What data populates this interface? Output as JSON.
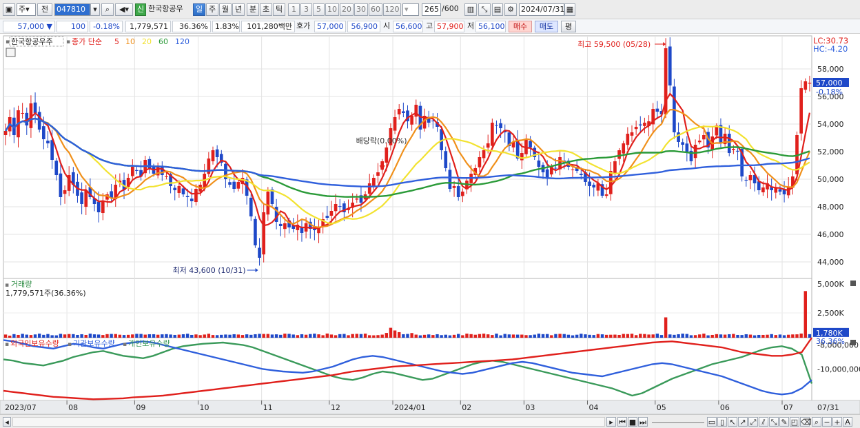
{
  "toolbar": {
    "period_type": "주",
    "prev_label": "전",
    "code": "047810",
    "sin_badge": "신",
    "stock_name": "한국항공우",
    "period_buttons": [
      "일",
      "주",
      "월",
      "년",
      "분",
      "초",
      "틱"
    ],
    "active_period": "일",
    "minute_buttons": [
      "1",
      "3",
      "5",
      "10",
      "20",
      "30",
      "60",
      "120"
    ],
    "count_value": "265",
    "count_total": "/600",
    "date": "2024/07/31"
  },
  "quote": {
    "price": "57,000",
    "change": "100",
    "change_pct": "-0.18%",
    "volume": "1,779,571",
    "vol_ratio": "36.36%",
    "turnover_pct": "1.83%",
    "amount": "101,280백만",
    "ask_label": "호가",
    "ask": "57,000",
    "bid": "56,900",
    "open_label": "시",
    "open": "56,600",
    "high_label": "고",
    "high": "57,900",
    "low_label": "저",
    "low": "56,100",
    "buy_label": "매수",
    "sell_label": "매도",
    "eval_label": "평"
  },
  "colors": {
    "up": "#e0201c",
    "down": "#1e48c8",
    "ma5": "#e0201c",
    "ma10": "#f0901a",
    "ma20": "#f2e230",
    "ma60": "#2a9a38",
    "ma120": "#2f5fdc",
    "foreign": "#e0201c",
    "institution": "#2f5fdc",
    "individual": "#3a9a5a"
  },
  "chart_data": [
    {
      "type": "candlestick",
      "title": "한국항공우주",
      "legend_label": "종가 단순",
      "ma_periods": [
        "5",
        "10",
        "20",
        "60",
        "120"
      ],
      "ylim": [
        42800,
        60400
      ],
      "yticks": [
        "44,000",
        "46,000",
        "48,000",
        "50,000",
        "52,000",
        "54,000",
        "56,000",
        "58,000"
      ],
      "x_labels": [
        "2023/07",
        "08",
        "09",
        "10",
        "11",
        "12",
        "2024/01",
        "02",
        "03",
        "04",
        "05",
        "06",
        "07"
      ],
      "last_date_label": "07/31",
      "last_price_tag": "57,000",
      "last_change_tag": "-0.18%",
      "lc": "LC:30.73",
      "hc": "HC:-4.20",
      "annotations": {
        "high": "최고 59,500 (05/28)",
        "low": "최저 43,600 (10/31)",
        "dividend": "배당락(0.00%)"
      },
      "series": [
        {
          "name": "종가",
          "values": [
            53500,
            54500,
            53200,
            55000,
            54800,
            53900,
            55500,
            54800,
            53600,
            52900,
            52600,
            51400,
            50300,
            48700,
            49200,
            50300,
            49600,
            48800,
            48200,
            49200,
            48700,
            48200,
            47600,
            48400,
            48900,
            48600,
            49600,
            49900,
            49200,
            50100,
            50900,
            50600,
            50200,
            51400,
            50800,
            50400,
            50900,
            50300,
            50200,
            49500,
            49200,
            49500,
            48900,
            48700,
            48400,
            49300,
            49600,
            50400,
            51500,
            52100,
            51600,
            51200,
            50000,
            49600,
            49300,
            49800,
            50100,
            48800,
            47300,
            45200,
            44300,
            47600,
            49100,
            48200,
            46900,
            46600,
            46800,
            46500,
            46400,
            46700,
            46100,
            46800,
            46400,
            46300,
            46500,
            47100,
            47200,
            47700,
            48200,
            48000,
            47600,
            47900,
            48300,
            48600,
            48300,
            48900,
            49700,
            50100,
            50500,
            51300,
            52300,
            53700,
            54500,
            55100,
            54800,
            54200,
            54600,
            55400,
            53600,
            54600,
            54100,
            54200,
            53800,
            52100,
            50800,
            49300,
            49500,
            48700,
            49100,
            49900,
            50400,
            50800,
            51600,
            52100,
            52600,
            54100,
            53900,
            53700,
            53400,
            52400,
            52700,
            51500,
            51900,
            52900,
            52300,
            51600,
            50900,
            50500,
            50100,
            50900,
            50800,
            51600,
            51200,
            50900,
            50700,
            50600,
            50300,
            49800,
            49500,
            49400,
            49700,
            48800,
            48900,
            50600,
            51300,
            52100,
            52600,
            53300,
            53400,
            53800,
            53900,
            54100,
            54200,
            55100,
            54900,
            54700,
            59500,
            56800,
            53400,
            52700,
            52500,
            52000,
            51300,
            52500,
            52800,
            53200,
            52300,
            53100,
            53900,
            52600,
            53300,
            51900,
            52200,
            52000,
            50200,
            49900,
            50300,
            49700,
            49200,
            49400,
            49700,
            49200,
            49400,
            49100,
            48900,
            49400,
            50200,
            53200,
            56600,
            57100,
            57000
          ]
        },
        {
          "name": "거래량",
          "values": [
            32,
            21,
            36,
            28,
            39,
            31,
            27,
            33,
            41,
            29,
            37,
            25,
            24,
            39,
            33,
            37,
            36,
            28,
            35,
            28,
            41,
            34,
            32,
            27,
            36,
            38,
            37,
            30,
            27,
            29,
            33,
            39,
            38,
            31,
            35,
            35,
            30,
            34,
            36,
            32,
            28,
            31,
            35,
            40,
            28,
            33,
            26,
            32,
            40,
            27,
            26,
            29,
            32,
            30,
            35,
            32,
            27,
            34,
            29,
            35,
            39,
            38,
            38,
            32,
            34,
            29,
            41,
            39,
            32,
            26,
            35,
            30,
            37,
            41,
            34,
            25,
            42,
            32,
            25,
            36,
            38,
            25,
            37,
            39,
            37,
            41,
            25,
            24,
            26,
            31,
            48,
            100,
            73,
            56,
            35,
            38,
            47,
            31,
            24,
            29,
            33,
            27,
            35,
            26,
            30,
            24,
            29,
            38,
            25,
            41,
            36,
            30,
            37,
            41,
            34,
            27,
            41,
            24,
            38,
            33,
            32,
            31,
            31,
            26,
            26,
            31,
            41,
            36,
            37,
            25,
            37,
            39,
            37,
            30,
            24,
            30,
            40,
            34,
            29,
            27,
            37,
            34,
            29,
            30,
            31,
            28,
            38,
            37,
            40,
            26,
            39,
            37,
            32,
            33,
            41,
            27,
            205,
            33,
            29,
            35,
            41,
            38,
            25,
            26,
            33,
            41,
            24,
            28,
            36,
            33,
            31,
            35,
            38,
            28,
            27,
            35,
            31,
            24,
            28,
            28,
            30,
            36,
            27,
            32,
            25,
            30,
            33,
            34,
            42,
            470,
            35.6
          ]
        },
        {
          "name": "외국인보유수량",
          "values": [
            -11.8,
            -11.9,
            -12.0,
            -12.1,
            -12.2,
            -12.3,
            -12.35,
            -12.4,
            -12.45,
            -12.5,
            -12.48,
            -12.45,
            -12.42,
            -12.35,
            -12.3,
            -12.25,
            -12.2,
            -12.1,
            -12.0,
            -11.9,
            -11.8,
            -11.7,
            -11.6,
            -11.5,
            -11.4,
            -11.3,
            -11.2,
            -11.1,
            -11.0,
            -10.9,
            -10.8,
            -10.7,
            -10.6,
            -10.5,
            -10.35,
            -10.2,
            -10.1,
            -10.0,
            -9.9,
            -9.8,
            -9.75,
            -9.7,
            -9.65,
            -9.6,
            -9.55,
            -9.5,
            -9.45,
            -9.4,
            -9.35,
            -9.3,
            -9.25,
            -9.2,
            -9.1,
            -9.0,
            -8.9,
            -8.8,
            -8.7,
            -8.6,
            -8.5,
            -8.4,
            -8.3,
            -8.2,
            -8.1,
            -8.0,
            -7.9,
            -7.8,
            -7.75,
            -7.7,
            -7.8,
            -7.9,
            -8.0,
            -8.1,
            -8.2,
            -8.4,
            -8.6,
            -8.7,
            -8.8,
            -8.9,
            -8.9,
            -8.8,
            -8.6,
            -7.4
          ]
        },
        {
          "name": "기관보유수량",
          "values": [
            -7.6,
            -7.7,
            -7.9,
            -8.1,
            -8.2,
            -8.3,
            -8.1,
            -7.9,
            -8.0,
            -8.2,
            -8.3,
            -8.1,
            -7.9,
            -7.8,
            -7.7,
            -7.8,
            -8.0,
            -8.2,
            -8.4,
            -8.6,
            -8.8,
            -9.0,
            -9.2,
            -9.4,
            -9.6,
            -9.8,
            -10.0,
            -10.1,
            -10.2,
            -10.25,
            -10.3,
            -10.2,
            -10.0,
            -9.8,
            -9.5,
            -9.2,
            -9.0,
            -8.9,
            -9.0,
            -9.2,
            -9.4,
            -9.6,
            -9.8,
            -10.0,
            -10.2,
            -10.3,
            -10.4,
            -10.3,
            -10.1,
            -9.9,
            -9.7,
            -9.5,
            -9.4,
            -9.5,
            -9.7,
            -9.9,
            -10.1,
            -10.3,
            -10.4,
            -10.5,
            -10.6,
            -10.4,
            -10.2,
            -10.0,
            -9.8,
            -9.6,
            -9.5,
            -9.6,
            -9.8,
            -10.0,
            -10.2,
            -10.4,
            -10.6,
            -10.9,
            -11.2,
            -11.5,
            -11.8,
            -12.0,
            -12.1,
            -12.0,
            -11.6,
            -10.9
          ]
        },
        {
          "name": "개인보유수량",
          "values": [
            -9.2,
            -9.3,
            -9.5,
            -9.6,
            -9.7,
            -9.5,
            -9.3,
            -9.0,
            -8.8,
            -8.6,
            -8.5,
            -8.7,
            -8.9,
            -9.0,
            -9.1,
            -8.9,
            -8.6,
            -8.3,
            -8.1,
            -8.0,
            -7.9,
            -7.85,
            -7.8,
            -7.9,
            -8.0,
            -8.2,
            -8.5,
            -8.8,
            -9.1,
            -9.4,
            -9.7,
            -10.0,
            -10.3,
            -10.6,
            -10.8,
            -10.9,
            -10.7,
            -10.4,
            -10.2,
            -10.3,
            -10.5,
            -10.7,
            -10.9,
            -10.8,
            -10.5,
            -10.2,
            -9.9,
            -9.6,
            -9.4,
            -9.3,
            -9.4,
            -9.6,
            -9.8,
            -10.0,
            -10.2,
            -10.4,
            -10.6,
            -10.8,
            -11.0,
            -11.2,
            -11.4,
            -11.6,
            -11.9,
            -12.2,
            -12.0,
            -11.6,
            -11.2,
            -10.8,
            -10.5,
            -10.2,
            -9.9,
            -9.6,
            -9.4,
            -9.2,
            -9.0,
            -8.7,
            -8.4,
            -8.2,
            -8.1,
            -8.3,
            -8.8,
            -11.2
          ]
        }
      ]
    },
    {
      "type": "bar",
      "title": "거래량",
      "volume_text": "1,779,571주(36.36%)",
      "yticks": [
        "5,000K",
        "2,500K"
      ],
      "last_tag": "1,780K",
      "last_pct_tag": "36.36%"
    },
    {
      "type": "line",
      "legend": [
        "외국인보유수량",
        "기관보유수량",
        "개인보유수량"
      ],
      "yticks": [
        "-8,000,000",
        "-10,000,000"
      ]
    }
  ],
  "scroll": {
    "zoom_out": "−",
    "zoom_in": "+",
    "font_label": "A"
  }
}
